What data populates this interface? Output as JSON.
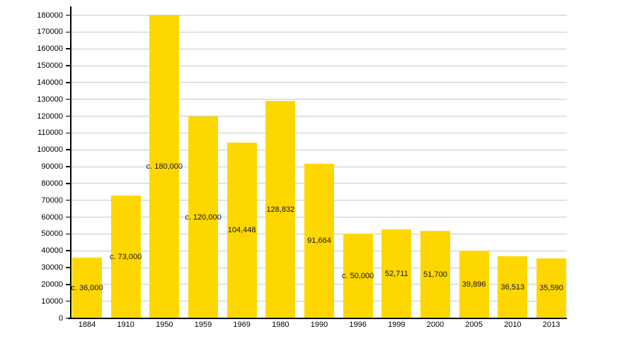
{
  "chart_data": {
    "type": "bar",
    "title": "",
    "xlabel": "",
    "ylabel": "",
    "categories": [
      "1884",
      "1910",
      "1950",
      "1959",
      "1969",
      "1980",
      "1990",
      "1996",
      "1999",
      "2000",
      "2005",
      "2010",
      "2013"
    ],
    "values": [
      36000,
      73000,
      180000,
      120000,
      104448,
      128832,
      91664,
      50000,
      52711,
      51700,
      39896,
      36513,
      35590
    ],
    "bar_labels": [
      "c. 36,000",
      "c. 73,000",
      "c. 180,000",
      "c. 120,000",
      "104,448",
      "128,832",
      "91,664",
      "c. 50,000",
      "52,711",
      "51,700",
      "39,896",
      "36,513",
      "35,590"
    ],
    "ylim": [
      0,
      180000
    ],
    "y_ticks": [
      0,
      10000,
      20000,
      30000,
      40000,
      50000,
      60000,
      70000,
      80000,
      90000,
      100000,
      110000,
      120000,
      130000,
      140000,
      150000,
      160000,
      170000,
      180000
    ],
    "grid": "horizontal",
    "legend": "none",
    "colors": {
      "bar": "#FFD700",
      "gridline": "#C8C8C8",
      "axis": "#000000",
      "tick_label": "#000000",
      "value_label": "#111111",
      "background": "#FFFFFF"
    }
  }
}
